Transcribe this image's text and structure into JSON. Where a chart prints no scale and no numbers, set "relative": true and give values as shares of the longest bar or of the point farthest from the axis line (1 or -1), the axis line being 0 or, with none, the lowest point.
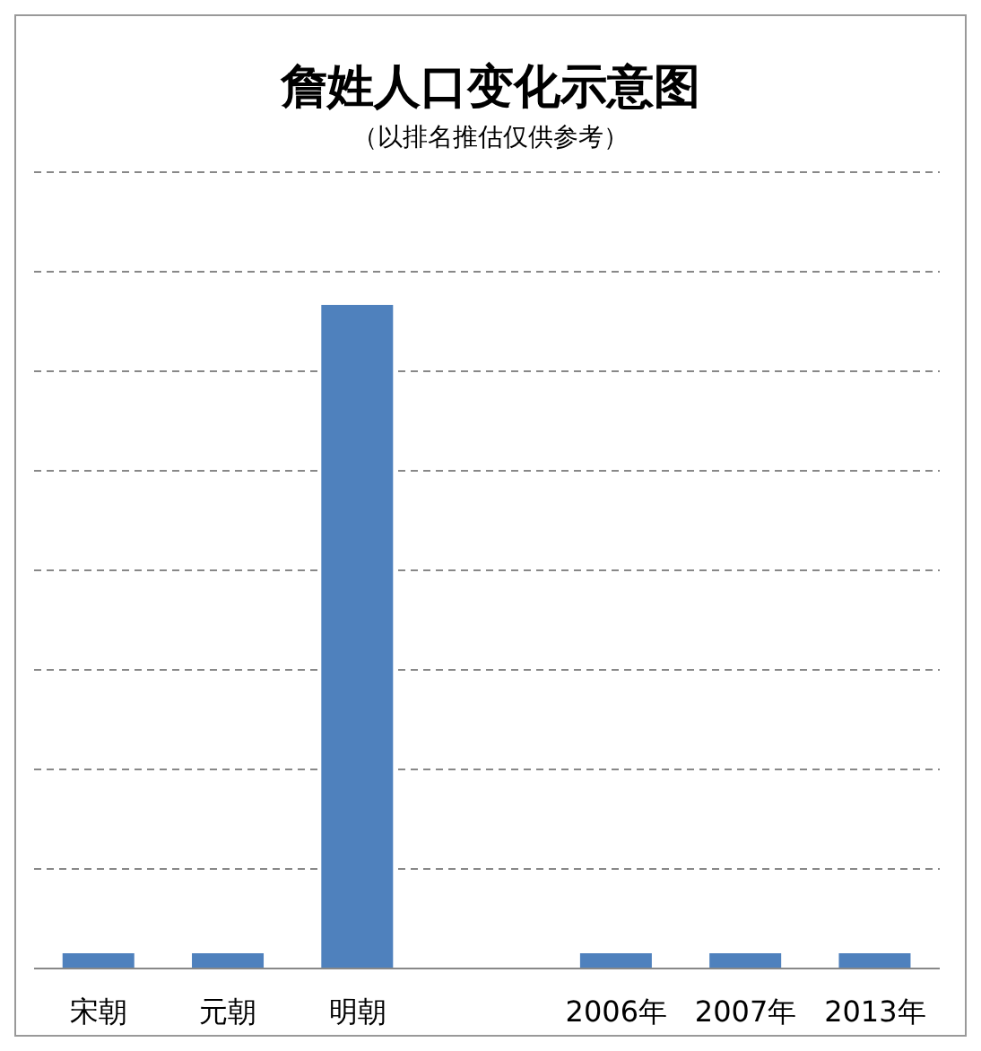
{
  "chart_data": {
    "type": "bar",
    "title": "詹姓人口变化示意图",
    "subtitle": "（以排名推估仅供参考）",
    "categories": [
      "宋朝",
      "元朝",
      "明朝",
      null,
      "2006年",
      "2007年",
      "2013年"
    ],
    "values": [
      0.023,
      0.023,
      1,
      null,
      0.023,
      0.023,
      0.023
    ],
    "color": "#4f81bd",
    "relative": true,
    "grid": "y"
  }
}
